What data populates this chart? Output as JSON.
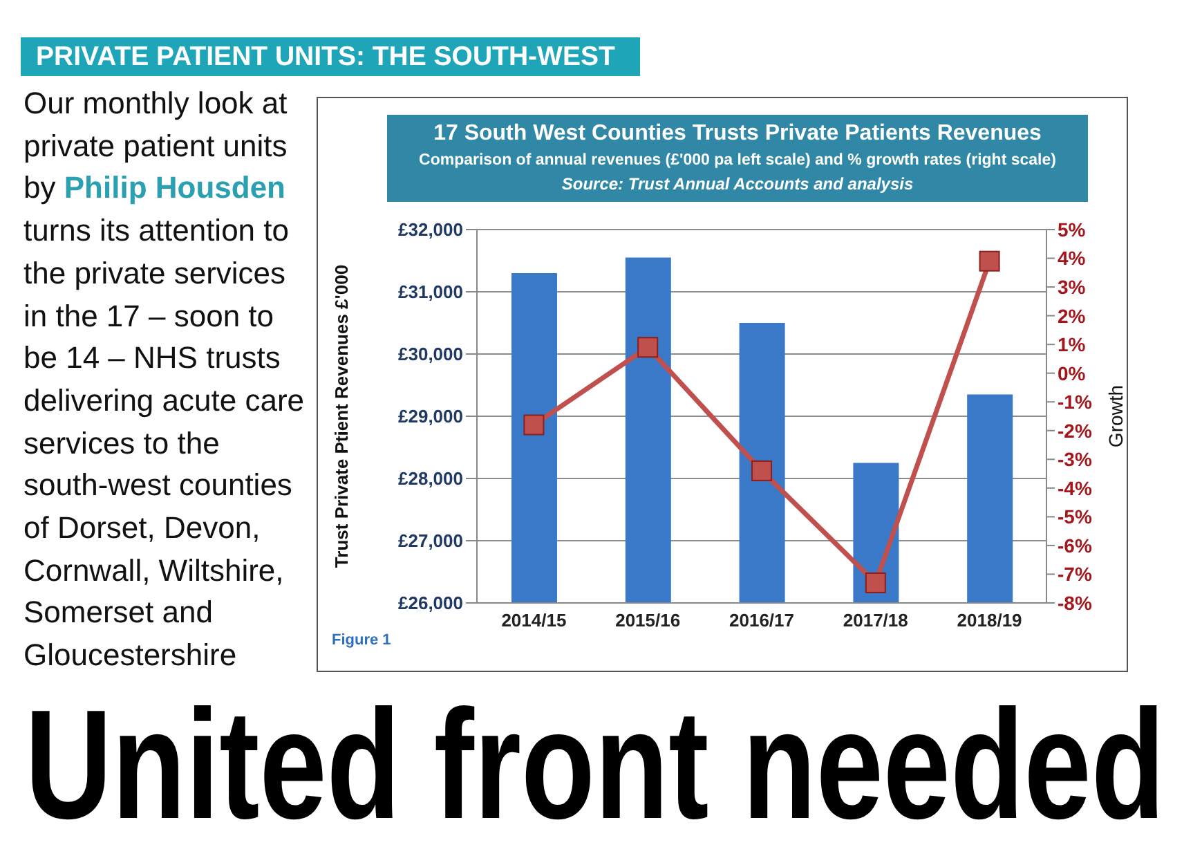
{
  "chart_data": {
    "type": "bar",
    "title": "17 South West Counties Trusts Private Patients Revenues",
    "subtitle": "Comparison of annual revenues (£'000 pa left scale) and % growth rates (right scale)",
    "annotations": [
      "Source: Trust Annual Accounts and analysis",
      "Figure 1",
      "PRIVATE PATIENT UNITS: THE SOUTH-WEST",
      "Our monthly look at private patient units by",
      "Philip Housden",
      "turns its attention to the private services in the 17 – soon to be 14 – NHS trusts delivering acute care services to the south-west counties of Dorset, Devon, Cornwall, Wiltshire, Somerset and Gloucestershire",
      "United front needed"
    ],
    "ylabel": "Trust Private Ptient Revenues £'000",
    "y2label": "Growth",
    "categories": [
      "2014/15",
      "2015/16",
      "2016/17",
      "2017/18",
      "2018/19"
    ],
    "series": [
      {
        "color": "#3a78c8",
        "values": [
          31300,
          31550,
          30500,
          28250,
          29350
        ]
      },
      {
        "type": "line",
        "axis": "y2",
        "color": "#c0504d",
        "values": [
          -1.8,
          0.9,
          -3.4,
          -7.3,
          3.9
        ]
      }
    ],
    "marker": "square",
    "grid": "y",
    "ylim": [
      26000,
      32000
    ],
    "yticks": [
      {
        "value": 26000,
        "label": "£26,000"
      },
      {
        "value": 27000,
        "label": "£27,000"
      },
      {
        "value": 28000,
        "label": "£28,000"
      },
      {
        "value": 29000,
        "label": "£29,000"
      },
      {
        "value": 30000,
        "label": "£30,000"
      },
      {
        "value": 31000,
        "label": "£31,000"
      },
      {
        "value": 32000,
        "label": "£32,000"
      }
    ],
    "y2lim": [
      -8,
      5
    ],
    "y2ticks": [
      {
        "value": -8,
        "label": "-8%"
      },
      {
        "value": -7,
        "label": "-7%"
      },
      {
        "value": -6,
        "label": "-6%"
      },
      {
        "value": -5,
        "label": "-5%"
      },
      {
        "value": -4,
        "label": "-4%"
      },
      {
        "value": -3,
        "label": "-3%"
      },
      {
        "value": -2,
        "label": "-2%"
      },
      {
        "value": -1,
        "label": "-1%"
      },
      {
        "value": 0,
        "label": "0%"
      },
      {
        "value": 1,
        "label": "1%"
      },
      {
        "value": 2,
        "label": "2%"
      },
      {
        "value": 3,
        "label": "3%"
      },
      {
        "value": 4,
        "label": "4%"
      },
      {
        "value": 5,
        "label": "5%"
      }
    ]
  }
}
